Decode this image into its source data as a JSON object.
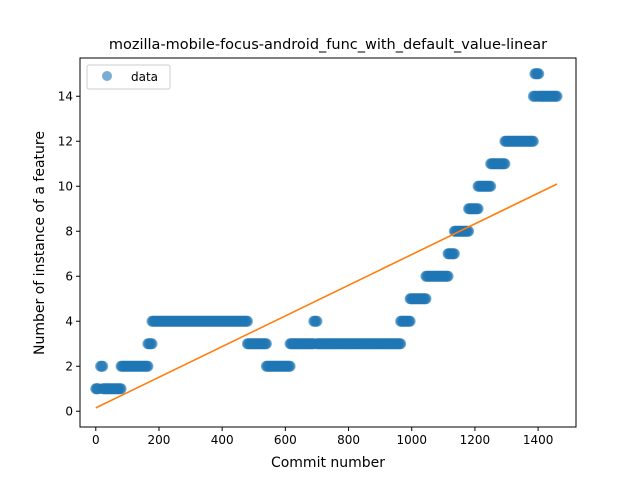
{
  "chart_data": {
    "type": "scatter",
    "title": "mozilla-mobile-focus-android_func_with_default_value-linear",
    "xlabel": "Commit number",
    "ylabel": "Number of instance of a feature",
    "xlim": [
      -50,
      1520
    ],
    "ylim": [
      -0.7,
      15.7
    ],
    "xticks": [
      0,
      200,
      400,
      600,
      800,
      1000,
      1200,
      1400
    ],
    "yticks": [
      0,
      2,
      4,
      6,
      8,
      10,
      12,
      14
    ],
    "grid": false,
    "legend": {
      "placement": "top-left",
      "entries": [
        "data"
      ]
    },
    "colors": {
      "data": "#1f77b4",
      "fit": "#ff7f0e"
    },
    "series": [
      {
        "name": "data",
        "kind": "scatter",
        "segments": [
          {
            "x_start": 0,
            "x_end": 8,
            "y": 1
          },
          {
            "x_start": 15,
            "x_end": 22,
            "y": 2
          },
          {
            "x_start": 22,
            "x_end": 80,
            "y": 1
          },
          {
            "x_start": 80,
            "x_end": 165,
            "y": 2
          },
          {
            "x_start": 165,
            "x_end": 178,
            "y": 3
          },
          {
            "x_start": 178,
            "x_end": 480,
            "y": 4
          },
          {
            "x_start": 480,
            "x_end": 540,
            "y": 3
          },
          {
            "x_start": 540,
            "x_end": 615,
            "y": 2
          },
          {
            "x_start": 615,
            "x_end": 690,
            "y": 3
          },
          {
            "x_start": 690,
            "x_end": 700,
            "y": 4
          },
          {
            "x_start": 700,
            "x_end": 965,
            "y": 3
          },
          {
            "x_start": 965,
            "x_end": 995,
            "y": 4
          },
          {
            "x_start": 995,
            "x_end": 1045,
            "y": 5
          },
          {
            "x_start": 1045,
            "x_end": 1115,
            "y": 6
          },
          {
            "x_start": 1115,
            "x_end": 1135,
            "y": 7
          },
          {
            "x_start": 1135,
            "x_end": 1180,
            "y": 8
          },
          {
            "x_start": 1180,
            "x_end": 1210,
            "y": 9
          },
          {
            "x_start": 1210,
            "x_end": 1250,
            "y": 10
          },
          {
            "x_start": 1250,
            "x_end": 1295,
            "y": 11
          },
          {
            "x_start": 1295,
            "x_end": 1385,
            "y": 12
          },
          {
            "x_start": 1385,
            "x_end": 1395,
            "y": 14
          },
          {
            "x_start": 1390,
            "x_end": 1402,
            "y": 15
          },
          {
            "x_start": 1402,
            "x_end": 1460,
            "y": 14
          }
        ]
      },
      {
        "name": "fit",
        "kind": "line",
        "x": [
          0,
          1460
        ],
        "y": [
          0.15,
          10.1
        ]
      }
    ]
  }
}
